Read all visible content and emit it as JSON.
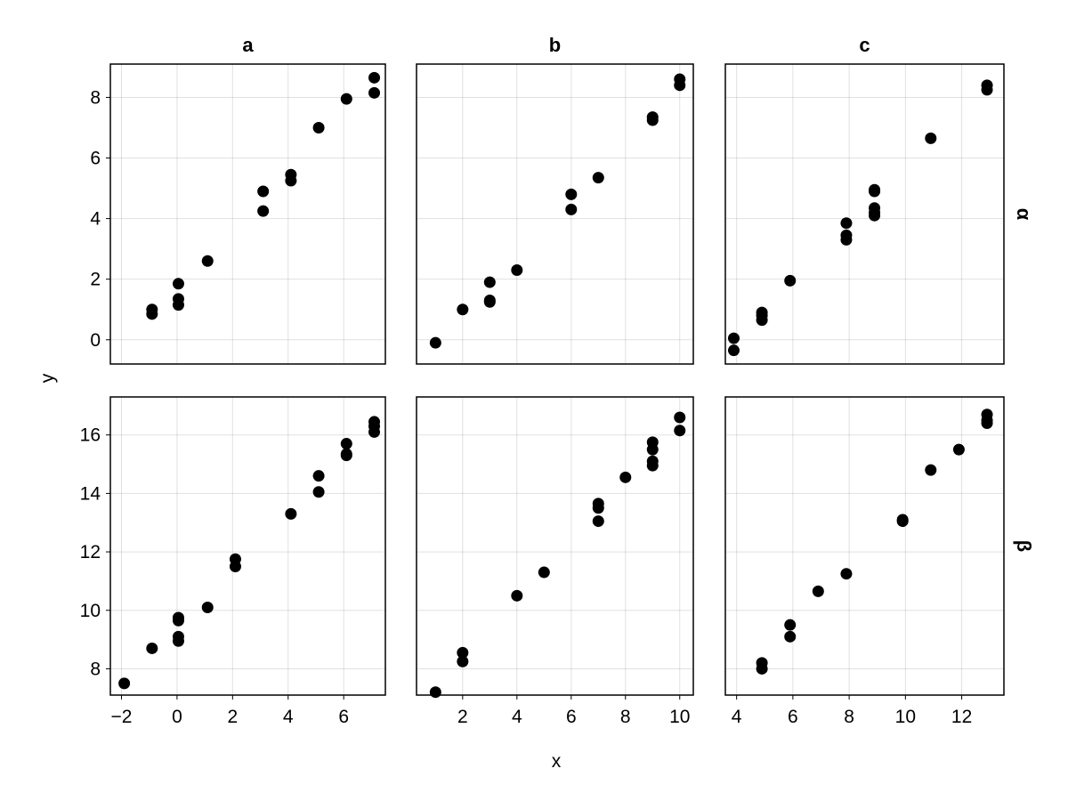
{
  "chart_data": {
    "type": "scatter",
    "xlabel": "x",
    "ylabel": "y",
    "grid": true,
    "col_titles": [
      "a",
      "b",
      "c"
    ],
    "row_titles": [
      "α",
      "β"
    ],
    "rows": [
      {
        "yticks": [
          0,
          2,
          4,
          6,
          8
        ],
        "ylim": [
          -0.8,
          9.1
        ],
        "panels": [
          {
            "col": "a",
            "row": "α",
            "xlim": [
              -2.4,
              7.5
            ],
            "xticks": [
              -2,
              0,
              2,
              4,
              6
            ],
            "points": [
              [
                -0.9,
                1.0
              ],
              [
                -0.9,
                0.85
              ],
              [
                0.05,
                1.85
              ],
              [
                0.05,
                1.35
              ],
              [
                0.05,
                1.15
              ],
              [
                1.1,
                2.6
              ],
              [
                3.1,
                4.9
              ],
              [
                3.1,
                4.25
              ],
              [
                4.1,
                5.45
              ],
              [
                4.1,
                5.25
              ],
              [
                5.1,
                7.0
              ],
              [
                6.1,
                7.95
              ],
              [
                7.1,
                8.65
              ],
              [
                7.1,
                8.15
              ]
            ]
          },
          {
            "col": "b",
            "row": "α",
            "xlim": [
              0.3,
              10.5
            ],
            "xticks": [
              2,
              4,
              6,
              8,
              10
            ],
            "points": [
              [
                1.0,
                -0.1
              ],
              [
                2.0,
                1.0
              ],
              [
                3.0,
                1.9
              ],
              [
                3.0,
                1.3
              ],
              [
                3.0,
                1.25
              ],
              [
                4.0,
                2.3
              ],
              [
                6.0,
                4.8
              ],
              [
                6.0,
                4.3
              ],
              [
                7.0,
                5.35
              ],
              [
                9.0,
                7.35
              ],
              [
                9.0,
                7.25
              ],
              [
                10.0,
                8.6
              ],
              [
                10.0,
                8.4
              ]
            ]
          },
          {
            "col": "c",
            "row": "α",
            "xlim": [
              3.6,
              13.5
            ],
            "xticks": [
              4,
              6,
              8,
              10,
              12
            ],
            "points": [
              [
                3.9,
                0.05
              ],
              [
                3.9,
                -0.35
              ],
              [
                4.9,
                0.9
              ],
              [
                4.9,
                0.8
              ],
              [
                4.9,
                0.65
              ],
              [
                5.9,
                1.95
              ],
              [
                7.9,
                3.85
              ],
              [
                7.9,
                3.45
              ],
              [
                7.9,
                3.3
              ],
              [
                8.9,
                4.95
              ],
              [
                8.9,
                4.9
              ],
              [
                8.9,
                4.35
              ],
              [
                8.9,
                4.2
              ],
              [
                8.9,
                4.1
              ],
              [
                10.9,
                6.65
              ],
              [
                12.9,
                8.4
              ],
              [
                12.9,
                8.25
              ]
            ]
          }
        ]
      },
      {
        "yticks": [
          8,
          10,
          12,
          14,
          16
        ],
        "ylim": [
          7.1,
          17.3
        ],
        "panels": [
          {
            "col": "a",
            "row": "β",
            "xlim": [
              -2.4,
              7.5
            ],
            "xticks": [
              -2,
              0,
              2,
              4,
              6
            ],
            "points": [
              [
                -1.9,
                7.5
              ],
              [
                -0.9,
                8.7
              ],
              [
                0.05,
                9.75
              ],
              [
                0.05,
                9.65
              ],
              [
                0.05,
                9.1
              ],
              [
                0.05,
                8.95
              ],
              [
                1.1,
                10.1
              ],
              [
                2.1,
                11.75
              ],
              [
                2.1,
                11.5
              ],
              [
                4.1,
                13.3
              ],
              [
                5.1,
                14.6
              ],
              [
                5.1,
                14.05
              ],
              [
                6.1,
                15.7
              ],
              [
                6.1,
                15.35
              ],
              [
                6.1,
                15.3
              ],
              [
                7.1,
                16.45
              ],
              [
                7.1,
                16.3
              ],
              [
                7.1,
                16.1
              ]
            ]
          },
          {
            "col": "b",
            "row": "β",
            "xlim": [
              0.3,
              10.5
            ],
            "xticks": [
              2,
              4,
              6,
              8,
              10
            ],
            "points": [
              [
                1.0,
                7.2
              ],
              [
                2.0,
                8.55
              ],
              [
                2.0,
                8.25
              ],
              [
                4.0,
                10.5
              ],
              [
                5.0,
                11.3
              ],
              [
                7.0,
                13.65
              ],
              [
                7.0,
                13.5
              ],
              [
                7.0,
                13.05
              ],
              [
                8.0,
                14.55
              ],
              [
                9.0,
                15.75
              ],
              [
                9.0,
                15.5
              ],
              [
                9.0,
                15.1
              ],
              [
                9.0,
                14.95
              ],
              [
                10.0,
                16.6
              ],
              [
                10.0,
                16.15
              ]
            ]
          },
          {
            "col": "c",
            "row": "β",
            "xlim": [
              3.6,
              13.5
            ],
            "xticks": [
              4,
              6,
              8,
              10,
              12
            ],
            "points": [
              [
                4.9,
                8.2
              ],
              [
                4.9,
                8.0
              ],
              [
                5.9,
                9.5
              ],
              [
                5.9,
                9.1
              ],
              [
                6.9,
                10.65
              ],
              [
                7.9,
                11.25
              ],
              [
                9.9,
                13.1
              ],
              [
                9.9,
                13.05
              ],
              [
                10.9,
                14.8
              ],
              [
                11.9,
                15.5
              ],
              [
                12.9,
                16.7
              ],
              [
                12.9,
                16.5
              ],
              [
                12.9,
                16.4
              ]
            ]
          }
        ]
      }
    ]
  }
}
